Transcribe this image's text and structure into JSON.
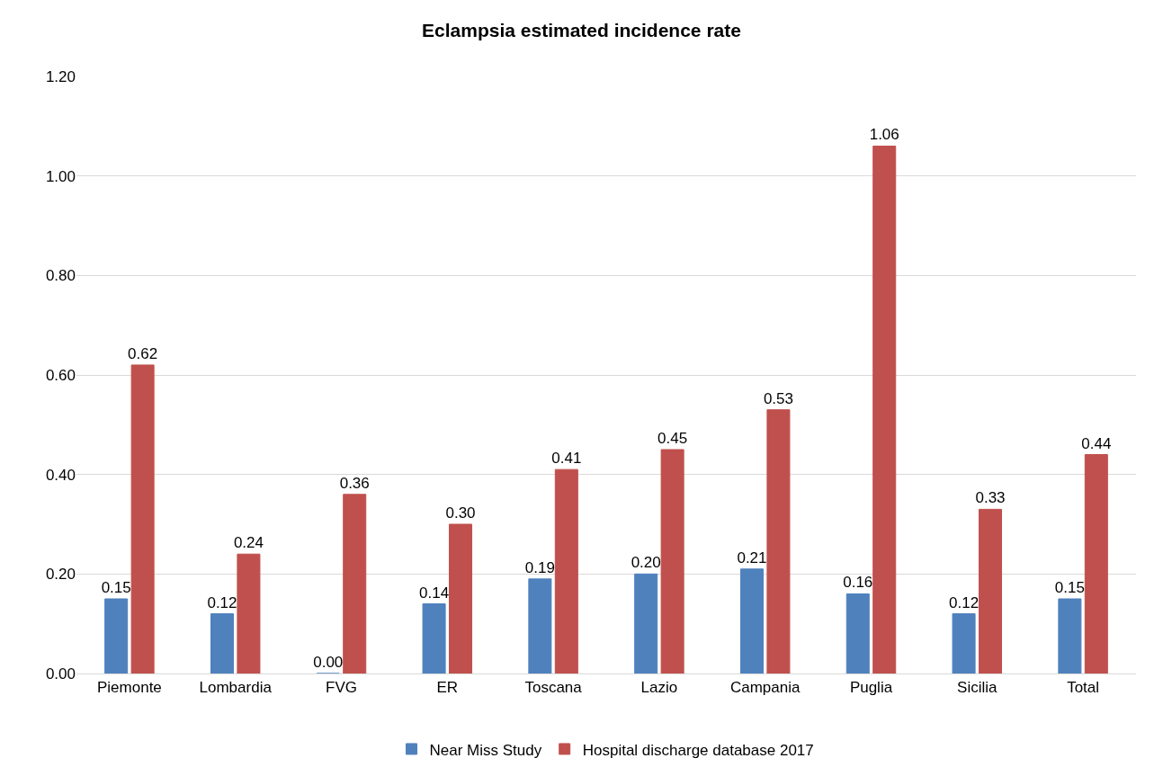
{
  "chart_data": {
    "type": "bar",
    "title": "Eclampsia estimated incidence rate",
    "categories": [
      "Piemonte",
      "Lombardia",
      "FVG",
      "ER",
      "Toscana",
      "Lazio",
      "Campania",
      "Puglia",
      "Sicilia",
      "Total"
    ],
    "series": [
      {
        "name": "Near Miss Study",
        "color": "#4f81bd",
        "values": [
          0.15,
          0.12,
          0.0,
          0.14,
          0.19,
          0.2,
          0.21,
          0.16,
          0.12,
          0.15
        ],
        "value_labels": [
          "0.15",
          "0.12",
          "0.00",
          "0.14",
          "0.19",
          "0.20",
          "0.21",
          "0.16",
          "0.12",
          "0.15"
        ]
      },
      {
        "name": "Hospital discharge database 2017",
        "color": "#c0504d",
        "values": [
          0.62,
          0.24,
          0.36,
          0.3,
          0.41,
          0.45,
          0.53,
          1.06,
          0.33,
          0.44
        ],
        "value_labels": [
          "0.62",
          "0.24",
          "0.36",
          "0.30",
          "0.41",
          "0.45",
          "0.53",
          "1.06",
          "0.33",
          "0.44"
        ]
      }
    ],
    "ylim": [
      0,
      1.2
    ],
    "yticks": [
      {
        "value": 0,
        "label": "0.00"
      },
      {
        "value": 0.2,
        "label": "0.20"
      },
      {
        "value": 0.4,
        "label": "0.40"
      },
      {
        "value": 0.6,
        "label": "0.60"
      },
      {
        "value": 0.8,
        "label": "0.80"
      },
      {
        "value": 1.0,
        "label": "1.00"
      },
      {
        "value": 1.2,
        "label": "1.20"
      }
    ],
    "grid": "y",
    "legend": "bottom"
  }
}
